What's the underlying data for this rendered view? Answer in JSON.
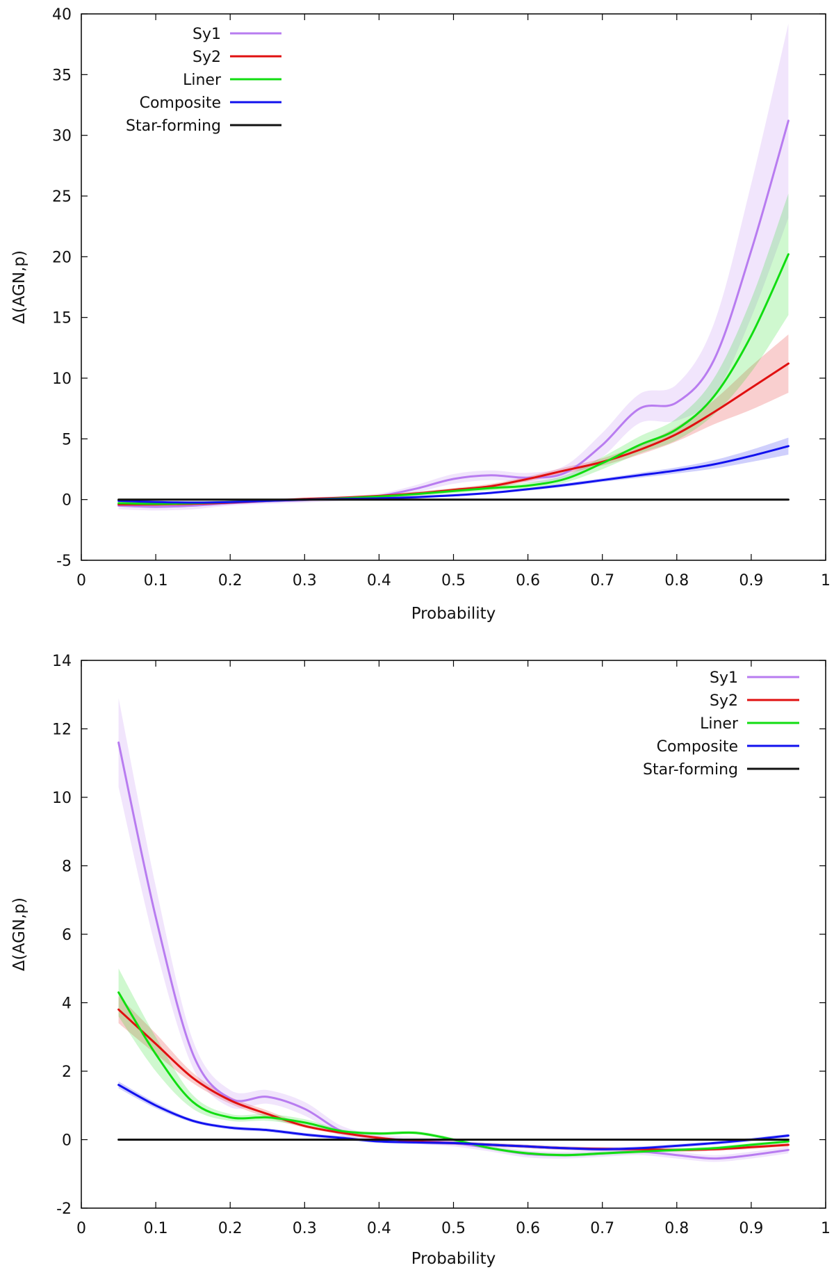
{
  "chart_data": [
    {
      "type": "line",
      "title": "",
      "xlabel": "Probability",
      "ylabel": "Δ(AGN,p)",
      "xlim": [
        0,
        1
      ],
      "ylim": [
        -5,
        40
      ],
      "xticks": [
        "0",
        "0.1",
        "0.2",
        "0.3",
        "0.4",
        "0.5",
        "0.6",
        "0.7",
        "0.8",
        "0.9",
        "1"
      ],
      "yticks": [
        "-5",
        "0",
        "5",
        "10",
        "15",
        "20",
        "25",
        "30",
        "35",
        "40"
      ],
      "legend_position": "top-left",
      "x": [
        0.05,
        0.1,
        0.15,
        0.2,
        0.25,
        0.3,
        0.35,
        0.4,
        0.45,
        0.5,
        0.55,
        0.6,
        0.65,
        0.7,
        0.75,
        0.8,
        0.85,
        0.9,
        0.95
      ],
      "series": [
        {
          "name": "Sy1",
          "color": "#b87cf0",
          "values": [
            -0.5,
            -0.6,
            -0.5,
            -0.3,
            -0.15,
            -0.05,
            0.1,
            0.3,
            0.9,
            1.7,
            2.0,
            1.8,
            2.2,
            4.5,
            7.5,
            8.0,
            11.5,
            20.5,
            31.2
          ],
          "band": [
            0.3,
            0.3,
            0.3,
            0.2,
            0.2,
            0.2,
            0.2,
            0.2,
            0.3,
            0.4,
            0.4,
            0.4,
            0.6,
            1.0,
            1.2,
            1.5,
            3.0,
            5.5,
            8.0
          ]
        },
        {
          "name": "Sy2",
          "color": "#e01010",
          "values": [
            -0.4,
            -0.4,
            -0.35,
            -0.25,
            -0.1,
            0.05,
            0.15,
            0.3,
            0.5,
            0.8,
            1.1,
            1.7,
            2.4,
            3.1,
            4.1,
            5.4,
            7.2,
            9.2,
            11.2
          ],
          "band": [
            0.15,
            0.15,
            0.15,
            0.1,
            0.1,
            0.1,
            0.1,
            0.1,
            0.15,
            0.15,
            0.2,
            0.2,
            0.25,
            0.3,
            0.4,
            0.6,
            1.0,
            1.8,
            2.4
          ]
        },
        {
          "name": "Liner",
          "color": "#11dd11",
          "values": [
            -0.3,
            -0.35,
            -0.3,
            -0.2,
            -0.1,
            0.0,
            0.1,
            0.25,
            0.45,
            0.7,
            0.95,
            1.15,
            1.7,
            3.0,
            4.5,
            5.8,
            8.5,
            13.5,
            20.2
          ],
          "band": [
            0.15,
            0.15,
            0.15,
            0.1,
            0.1,
            0.1,
            0.1,
            0.1,
            0.15,
            0.2,
            0.2,
            0.25,
            0.3,
            0.5,
            0.7,
            0.9,
            1.5,
            3.0,
            5.0
          ]
        },
        {
          "name": "Composite",
          "color": "#1111ee",
          "values": [
            -0.1,
            -0.2,
            -0.25,
            -0.2,
            -0.1,
            0.0,
            0.05,
            0.1,
            0.2,
            0.35,
            0.55,
            0.85,
            1.2,
            1.6,
            2.0,
            2.4,
            2.9,
            3.6,
            4.4
          ],
          "band": [
            0.1,
            0.1,
            0.1,
            0.1,
            0.1,
            0.1,
            0.1,
            0.1,
            0.1,
            0.1,
            0.1,
            0.1,
            0.15,
            0.15,
            0.2,
            0.25,
            0.35,
            0.5,
            0.7
          ]
        },
        {
          "name": "Star-forming",
          "color": "#111111",
          "values": [
            0,
            0,
            0,
            0,
            0,
            0,
            0,
            0,
            0,
            0,
            0,
            0,
            0,
            0,
            0,
            0,
            0,
            0,
            0
          ],
          "band": [
            0,
            0,
            0,
            0,
            0,
            0,
            0,
            0,
            0,
            0,
            0,
            0,
            0,
            0,
            0,
            0,
            0,
            0,
            0
          ]
        }
      ]
    },
    {
      "type": "line",
      "title": "",
      "xlabel": "Probability",
      "ylabel": "Δ(AGN,p)",
      "xlim": [
        0,
        1
      ],
      "ylim": [
        -2,
        14
      ],
      "xticks": [
        "0",
        "0.1",
        "0.2",
        "0.3",
        "0.4",
        "0.5",
        "0.6",
        "0.7",
        "0.8",
        "0.9",
        "1"
      ],
      "yticks": [
        "-2",
        "0",
        "2",
        "4",
        "6",
        "8",
        "10",
        "12",
        "14"
      ],
      "legend_position": "top-right",
      "x": [
        0.05,
        0.1,
        0.15,
        0.2,
        0.25,
        0.3,
        0.35,
        0.4,
        0.45,
        0.5,
        0.55,
        0.6,
        0.65,
        0.7,
        0.75,
        0.8,
        0.85,
        0.9,
        0.95
      ],
      "series": [
        {
          "name": "Sy1",
          "color": "#b87cf0",
          "values": [
            11.6,
            6.5,
            2.5,
            1.2,
            1.25,
            0.9,
            0.25,
            0.05,
            -0.02,
            -0.1,
            -0.25,
            -0.42,
            -0.45,
            -0.4,
            -0.35,
            -0.45,
            -0.55,
            -0.45,
            -0.3
          ],
          "band": [
            1.3,
            0.9,
            0.4,
            0.25,
            0.2,
            0.2,
            0.15,
            0.1,
            0.1,
            0.1,
            0.1,
            0.1,
            0.1,
            0.1,
            0.1,
            0.1,
            0.1,
            0.1,
            0.1
          ]
        },
        {
          "name": "Sy2",
          "color": "#e01010",
          "values": [
            3.8,
            2.8,
            1.8,
            1.15,
            0.75,
            0.4,
            0.2,
            0.05,
            -0.05,
            -0.1,
            -0.15,
            -0.2,
            -0.25,
            -0.27,
            -0.28,
            -0.3,
            -0.28,
            -0.22,
            -0.15
          ],
          "band": [
            0.4,
            0.3,
            0.15,
            0.1,
            0.1,
            0.05,
            0.05,
            0.05,
            0.05,
            0.05,
            0.05,
            0.05,
            0.05,
            0.05,
            0.05,
            0.05,
            0.05,
            0.05,
            0.05
          ]
        },
        {
          "name": "Liner",
          "color": "#11dd11",
          "values": [
            4.3,
            2.5,
            1.1,
            0.65,
            0.65,
            0.5,
            0.25,
            0.18,
            0.2,
            0.0,
            -0.25,
            -0.4,
            -0.45,
            -0.4,
            -0.35,
            -0.3,
            -0.25,
            -0.15,
            -0.05
          ],
          "band": [
            0.7,
            0.5,
            0.2,
            0.1,
            0.1,
            0.1,
            0.05,
            0.05,
            0.05,
            0.05,
            0.05,
            0.05,
            0.05,
            0.05,
            0.05,
            0.05,
            0.05,
            0.05,
            0.05
          ]
        },
        {
          "name": "Composite",
          "color": "#1111ee",
          "values": [
            1.6,
            1.0,
            0.55,
            0.35,
            0.28,
            0.15,
            0.05,
            -0.05,
            -0.08,
            -0.1,
            -0.15,
            -0.2,
            -0.25,
            -0.28,
            -0.25,
            -0.18,
            -0.1,
            0.0,
            0.12
          ],
          "band": [
            0.1,
            0.08,
            0.05,
            0.05,
            0.05,
            0.05,
            0.05,
            0.05,
            0.05,
            0.05,
            0.05,
            0.05,
            0.05,
            0.05,
            0.05,
            0.05,
            0.05,
            0.05,
            0.05
          ]
        },
        {
          "name": "Star-forming",
          "color": "#111111",
          "values": [
            0,
            0,
            0,
            0,
            0,
            0,
            0,
            0,
            0,
            0,
            0,
            0,
            0,
            0,
            0,
            0,
            0,
            0,
            0
          ],
          "band": [
            0,
            0,
            0,
            0,
            0,
            0,
            0,
            0,
            0,
            0,
            0,
            0,
            0,
            0,
            0,
            0,
            0,
            0,
            0
          ]
        }
      ]
    }
  ]
}
